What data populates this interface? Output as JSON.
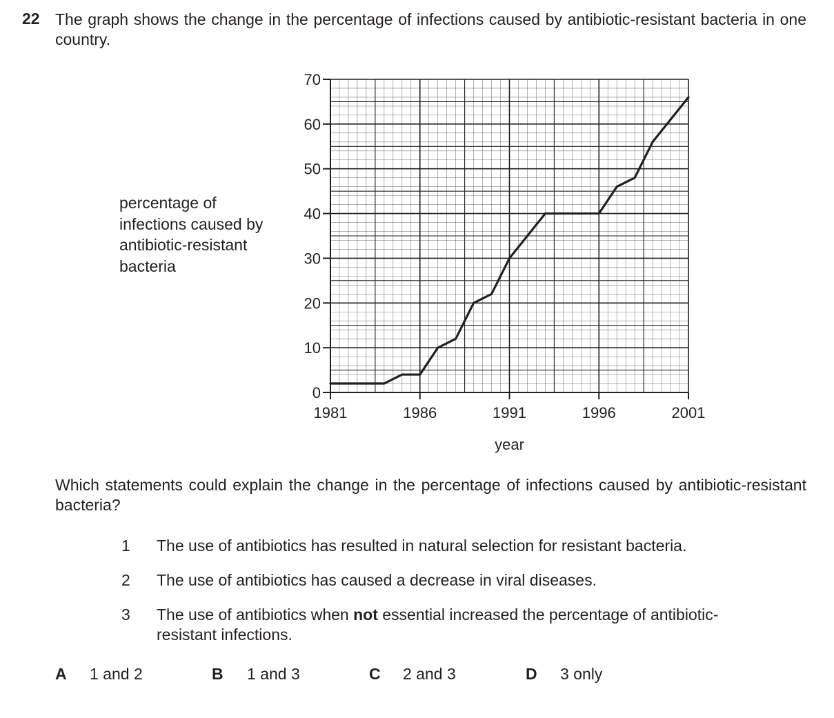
{
  "question": {
    "number": "22",
    "stem": "The graph shows the change in the percentage of infections caused by antibiotic-resistant bacteria in one country.",
    "prompt": "Which statements could explain the change in the percentage of infections caused by antibiotic-resistant bacteria?",
    "statements": [
      {
        "num": "1",
        "parts": [
          {
            "text": "The use of antibiotics has resulted in natural selection for resistant bacteria."
          }
        ]
      },
      {
        "num": "2",
        "parts": [
          {
            "text": "The use of antibiotics has caused a decrease in viral diseases."
          }
        ]
      },
      {
        "num": "3",
        "parts": [
          {
            "text": "The use of antibiotics when "
          },
          {
            "text": "not",
            "bold": true
          },
          {
            "text": " essential increased the percentage of antibiotic-resistant infections."
          }
        ]
      }
    ],
    "options": [
      {
        "letter": "A",
        "text": "1 and 2"
      },
      {
        "letter": "B",
        "text": "1 and 3"
      },
      {
        "letter": "C",
        "text": "2 and 3"
      },
      {
        "letter": "D",
        "text": "3 only"
      }
    ]
  },
  "chart_data": {
    "type": "line",
    "title": "",
    "xlabel": "year",
    "ylabel": "percentage of infections caused by antibiotic-resistant bacteria",
    "xlim": [
      1981,
      2001
    ],
    "ylim": [
      0,
      70
    ],
    "x_ticks": [
      1981,
      1986,
      1991,
      1996,
      2001
    ],
    "y_ticks": [
      0,
      10,
      20,
      30,
      40,
      50,
      60,
      70
    ],
    "grid": true,
    "grid_minor_x": 0.5,
    "grid_minor_y": 2,
    "line_color": "#231f20",
    "series": [
      {
        "x": [
          1981,
          1984,
          1985,
          1986,
          1987,
          1988,
          1989,
          1990,
          1991,
          1992,
          1993,
          1996,
          1997,
          1998,
          1998.5,
          1999,
          2000,
          2001
        ],
        "y": [
          2,
          2,
          4,
          4,
          10,
          12,
          20,
          22,
          30,
          35,
          40,
          40,
          46,
          48,
          52,
          56,
          61,
          66
        ]
      }
    ]
  }
}
